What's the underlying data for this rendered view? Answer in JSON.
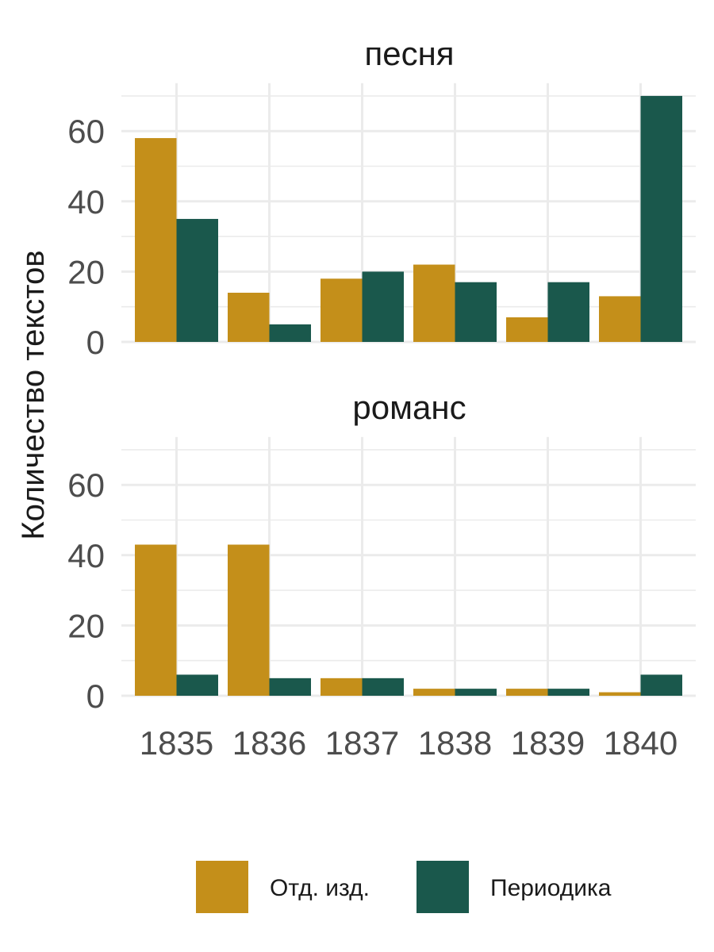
{
  "chart_data": {
    "type": "bar",
    "ylabel": "Количество текстов",
    "xlabel": "",
    "categories": [
      "1835",
      "1836",
      "1837",
      "1838",
      "1839",
      "1840"
    ],
    "ylim": [
      0,
      70
    ],
    "yticks": [
      0,
      20,
      40,
      60
    ],
    "grid": true,
    "legend_position": "bottom",
    "colors": {
      "Отд. изд.": "#C48F1A",
      "Периодика": "#1A584C"
    },
    "legend": [
      "Отд. изд.",
      "Периодика"
    ],
    "panels": [
      {
        "title": "песня",
        "series": [
          {
            "name": "Отд. изд.",
            "values": [
              58,
              14,
              18,
              22,
              7,
              13
            ]
          },
          {
            "name": "Периодика",
            "values": [
              35,
              5,
              20,
              17,
              17,
              70
            ]
          }
        ]
      },
      {
        "title": "романс",
        "series": [
          {
            "name": "Отд. изд.",
            "values": [
              43,
              43,
              5,
              2,
              2,
              1
            ]
          },
          {
            "name": "Периодика",
            "values": [
              6,
              5,
              5,
              2,
              2,
              6
            ]
          }
        ]
      }
    ]
  }
}
